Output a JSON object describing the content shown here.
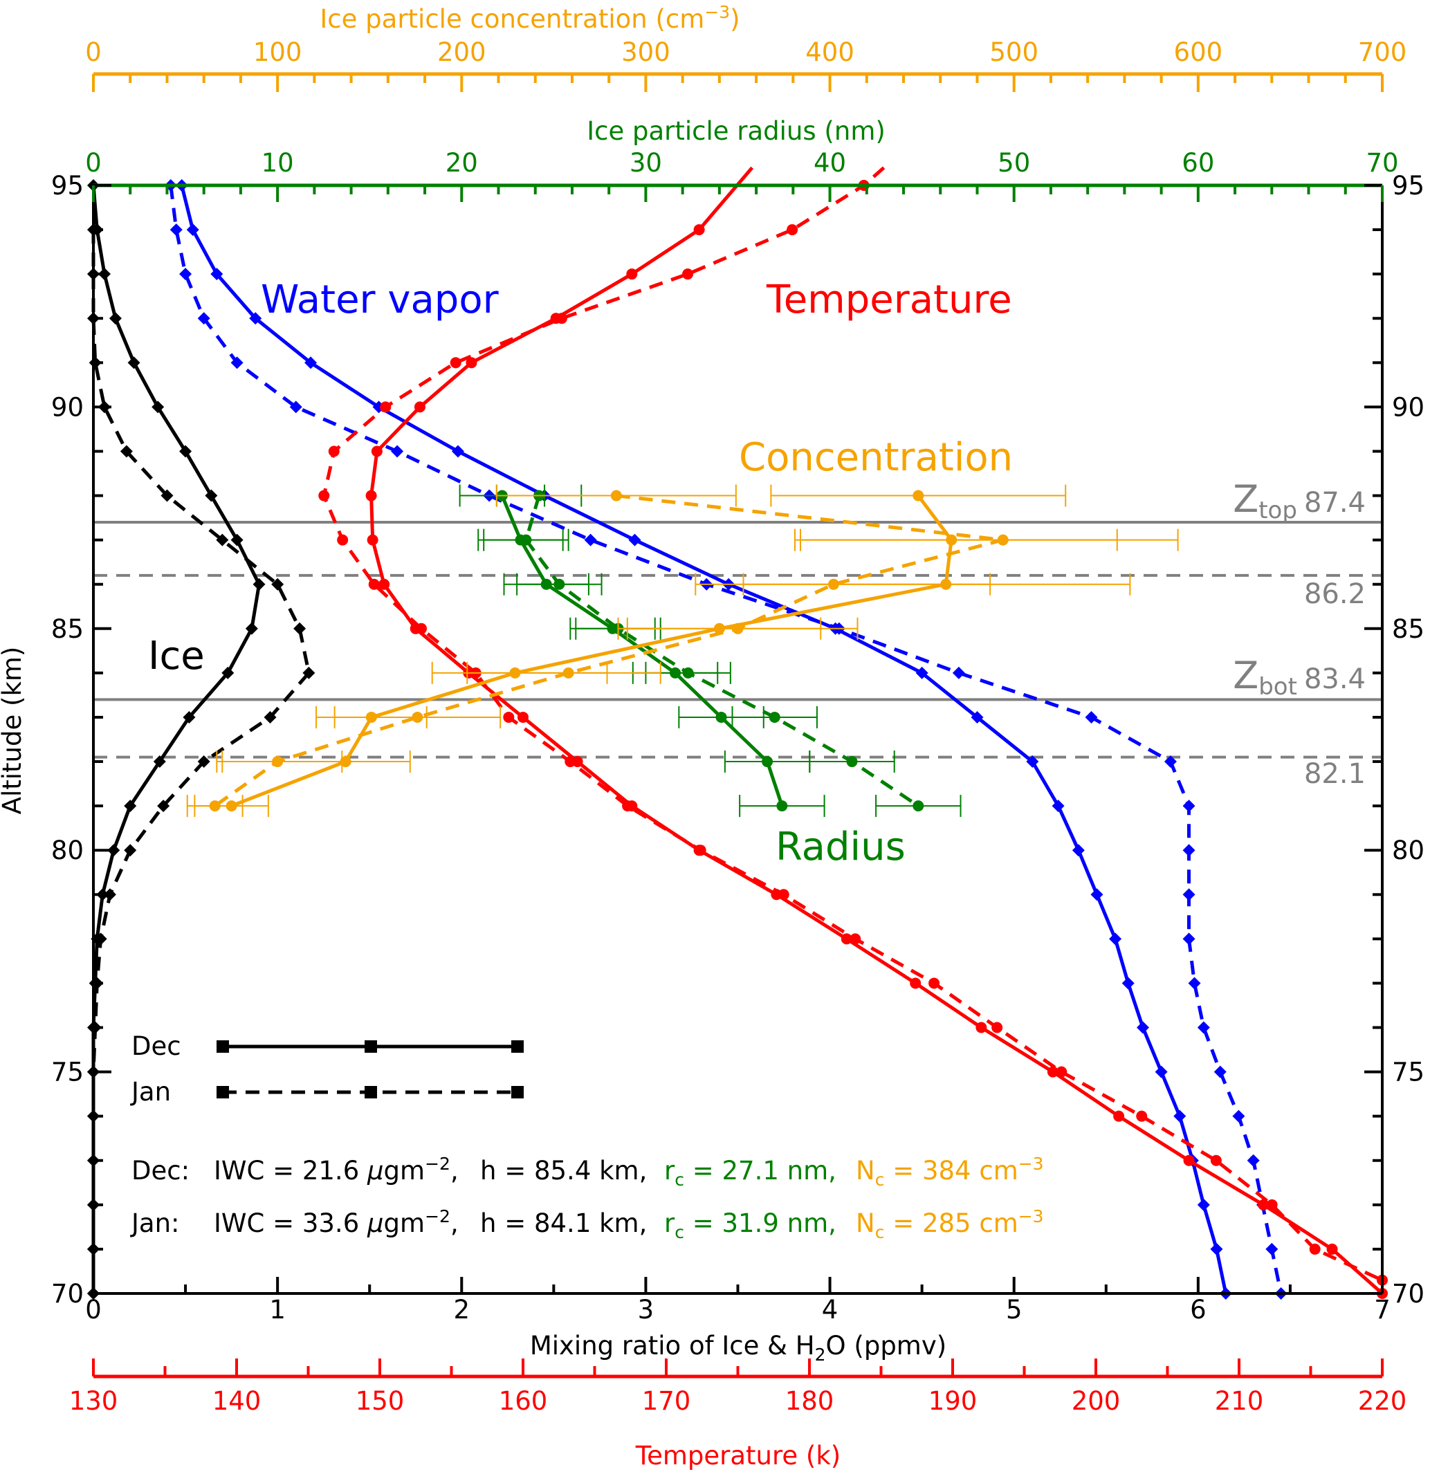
{
  "chart_data": {
    "type": "line",
    "ylabel": "Altitude (km)",
    "ylim": [
      70,
      95
    ],
    "yticks": [
      "70",
      "75",
      "80",
      "85",
      "90",
      "95"
    ],
    "axes": {
      "mixing": {
        "label_pre": "Mixing ratio of Ice & H",
        "label_sub": "2",
        "label_post": "O (ppmv)",
        "range": [
          0,
          7
        ],
        "ticks": [
          "0",
          "1",
          "2",
          "3",
          "4",
          "5",
          "6",
          "7"
        ],
        "color": "#000000"
      },
      "temperature": {
        "label": "Temperature (k)",
        "range": [
          130,
          220
        ],
        "ticks": [
          "130",
          "140",
          "150",
          "160",
          "170",
          "180",
          "190",
          "200",
          "210",
          "220"
        ],
        "color": "#ff0000"
      },
      "radius": {
        "label": "Ice particle radius (nm)",
        "range": [
          0,
          70
        ],
        "ticks": [
          "0",
          "10",
          "20",
          "30",
          "40",
          "50",
          "60",
          "70"
        ],
        "color": "#008000"
      },
      "concentration": {
        "label_pre": "Ice particle concentration (cm",
        "label_sup": "−3",
        "label_post": ")",
        "range": [
          0,
          700
        ],
        "ticks": [
          "0",
          "100",
          "200",
          "300",
          "400",
          "500",
          "600",
          "700"
        ],
        "color": "#f5a300"
      }
    },
    "series": [
      {
        "key": "ice_dec",
        "axis": "mixing",
        "month": "Dec",
        "dash": false,
        "marker": "diamond",
        "color": "#000000",
        "x": [
          0.0,
          0.02,
          0.06,
          0.12,
          0.22,
          0.35,
          0.5,
          0.64,
          0.78,
          0.9,
          0.86,
          0.73,
          0.52,
          0.36,
          0.2,
          0.11,
          0.05,
          0.02,
          0.01,
          0.0,
          0.0,
          0.0,
          0.0,
          0.0,
          0.0,
          0.0
        ],
        "y": [
          95,
          94,
          93,
          92,
          91,
          90,
          89,
          88,
          87,
          86,
          85,
          84,
          83,
          82,
          81,
          80,
          79,
          78,
          77,
          76,
          75,
          74,
          73,
          72,
          71,
          70
        ]
      },
      {
        "key": "ice_jan",
        "axis": "mixing",
        "month": "Jan",
        "dash": true,
        "marker": "diamond",
        "color": "#000000",
        "x": [
          0.0,
          0.0,
          0.0,
          0.01,
          0.06,
          0.18,
          0.4,
          0.7,
          1.0,
          1.12,
          1.17,
          0.96,
          0.6,
          0.38,
          0.2,
          0.09,
          0.04,
          0.02,
          0.01,
          0.0,
          0.0,
          0.0,
          0.0,
          0.0,
          0.0
        ],
        "y": [
          94,
          93,
          92,
          91,
          90,
          89,
          88,
          87,
          86,
          85,
          84,
          83,
          82,
          81,
          80,
          79,
          78,
          77,
          76,
          75,
          74,
          73,
          72,
          71,
          70
        ]
      },
      {
        "key": "wv_dec",
        "axis": "mixing",
        "month": "Dec",
        "dash": false,
        "marker": "diamond",
        "color": "#0000ff",
        "x": [
          0.48,
          0.54,
          0.67,
          0.88,
          1.18,
          1.55,
          1.98,
          2.45,
          2.94,
          3.45,
          4.03,
          4.5,
          4.8,
          5.1,
          5.24,
          5.35,
          5.45,
          5.55,
          5.62,
          5.7,
          5.8,
          5.9,
          5.97,
          6.03,
          6.1,
          6.15
        ],
        "y": [
          95,
          94,
          93,
          92,
          91,
          90,
          89,
          88,
          87,
          86,
          85,
          84,
          83,
          82,
          81,
          80,
          79,
          78,
          77,
          76,
          75,
          74,
          73,
          72,
          71,
          70
        ]
      },
      {
        "key": "wv_jan",
        "axis": "mixing",
        "month": "Jan",
        "dash": true,
        "marker": "diamond",
        "color": "#0000ff",
        "x": [
          0.42,
          0.45,
          0.5,
          0.6,
          0.78,
          1.1,
          1.65,
          2.15,
          2.7,
          3.33,
          4.05,
          4.7,
          5.42,
          5.85,
          5.95,
          5.95,
          5.95,
          5.95,
          5.98,
          6.03,
          6.12,
          6.22,
          6.3,
          6.35,
          6.4,
          6.45
        ],
        "y": [
          95,
          94,
          93,
          92,
          91,
          90,
          89,
          88,
          87,
          86,
          85,
          84,
          83,
          82,
          81,
          80,
          79,
          78,
          77,
          76,
          75,
          74,
          73,
          72,
          71,
          70
        ]
      },
      {
        "key": "t_dec",
        "axis": "temperature",
        "month": "Dec",
        "dash": false,
        "marker": "circle",
        "color": "#ff0000",
        "x": [
          176.0,
          172.3,
          167.6,
          162.3,
          156.4,
          152.8,
          149.8,
          149.4,
          149.5,
          150.3,
          152.5,
          156.2,
          160.0,
          163.8,
          167.6,
          172.3,
          177.7,
          182.6,
          187.4,
          192.0,
          197.0,
          201.6,
          206.5,
          211.7,
          216.5,
          220.0
        ],
        "y": [
          95.4,
          94,
          93,
          92,
          91,
          90,
          89,
          88,
          87,
          86,
          85,
          84,
          83,
          82,
          81,
          80,
          79,
          78,
          77,
          76,
          75,
          74,
          73,
          72,
          71,
          70
        ]
      },
      {
        "key": "t_jan",
        "axis": "temperature",
        "month": "Jan",
        "dash": true,
        "marker": "circle",
        "color": "#ff0000",
        "x": [
          185.2,
          183.8,
          178.8,
          171.5,
          162.7,
          155.3,
          150.4,
          146.8,
          146.1,
          147.4,
          149.6,
          152.9,
          156.7,
          159.0,
          163.3,
          167.3,
          172.4,
          178.2,
          183.2,
          188.7,
          193.1,
          197.6,
          203.2,
          208.4,
          212.3,
          215.3,
          220.0
        ],
        "y": [
          95.4,
          95,
          94,
          93,
          92,
          91,
          90,
          89,
          88,
          87,
          86,
          85,
          84,
          83,
          82,
          81,
          80,
          79,
          78,
          77,
          76,
          75,
          74,
          73,
          72,
          71,
          70.3
        ]
      },
      {
        "key": "r_dec",
        "axis": "radius",
        "month": "Dec",
        "dash": false,
        "marker": "circle",
        "color": "#008000",
        "err": 2.3,
        "x": [
          22.2,
          23.2,
          24.6,
          28.2,
          31.6,
          34.1,
          36.6,
          37.4
        ],
        "y": [
          88,
          87,
          86,
          85,
          84,
          83,
          82,
          81
        ]
      },
      {
        "key": "r_jan",
        "axis": "radius",
        "month": "Jan",
        "dash": true,
        "marker": "circle",
        "color": "#008000",
        "err": 2.3,
        "x": [
          24.2,
          23.5,
          25.3,
          28.5,
          32.3,
          37.0,
          41.2,
          44.8
        ],
        "y": [
          88,
          87,
          86,
          85,
          84,
          83,
          82,
          81
        ]
      },
      {
        "key": "c_dec",
        "axis": "concentration",
        "month": "Dec",
        "dash": false,
        "marker": "circle",
        "color": "#f5a300",
        "x": [
          448,
          466,
          463,
          340,
          229,
          151,
          137,
          75
        ],
        "errL": [
          80,
          85,
          110,
          55,
          45,
          30,
          70,
          20
        ],
        "errR": [
          80,
          90,
          100,
          55,
          50,
          30,
          35,
          20
        ],
        "y": [
          88,
          87,
          86,
          85,
          84,
          83,
          82,
          81
        ]
      },
      {
        "key": "c_jan",
        "axis": "concentration",
        "month": "Jan",
        "dash": true,
        "marker": "circle",
        "color": "#f5a300",
        "x": [
          284,
          494,
          402,
          350,
          258,
          176,
          100,
          66
        ],
        "errL": [
          65,
          110,
          75,
          60,
          55,
          45,
          30,
          15
        ],
        "errR": [
          65,
          95,
          85,
          65,
          50,
          45,
          35,
          15
        ],
        "y": [
          88,
          87,
          86,
          85,
          84,
          83,
          82,
          81
        ]
      }
    ],
    "reference_lines": [
      {
        "altitude": 87.4,
        "style": "solid",
        "label_main": "Z",
        "label_sub": "top",
        "label_value": "87.4"
      },
      {
        "altitude": 86.2,
        "style": "dashed",
        "label_value": "86.2"
      },
      {
        "altitude": 83.4,
        "style": "solid",
        "label_main": "Z",
        "label_sub": "bot",
        "label_value": "83.4"
      },
      {
        "altitude": 82.1,
        "style": "dashed",
        "label_value": "82.1"
      }
    ],
    "annotations": {
      "water_vapor": "Water vapor",
      "temperature": "Temperature",
      "concentration": "Concentration",
      "radius": "Radius",
      "ice": "Ice"
    },
    "legend": {
      "position": "bottom-left",
      "items": [
        {
          "label": "Dec",
          "dash": false
        },
        {
          "label": "Jan",
          "dash": true
        }
      ]
    },
    "stats": [
      {
        "month": "Dec:",
        "iwc_pre": "IWC = 21.6 ",
        "iwc_mu": "μ",
        "iwc_unit": "gm",
        "iwc_sup": "−2",
        "iwc_post": ",",
        "h": "h = 85.4 km,",
        "r_main": "r",
        "r_sub": "c",
        "r_post": " = 27.1 nm,",
        "n_main": "N",
        "n_sub": "c",
        "n_post": " = 384 cm",
        "n_sup": "−3"
      },
      {
        "month": "Jan:",
        "iwc_pre": "IWC = 33.6 ",
        "iwc_mu": "μ",
        "iwc_unit": "gm",
        "iwc_sup": "−2",
        "iwc_post": ",",
        "h": "h = 84.1 km,",
        "r_main": "r",
        "r_sub": "c",
        "r_post": " = 31.9 nm,",
        "n_main": "N",
        "n_sub": "c",
        "n_post": " = 285 cm",
        "n_sup": "−3"
      }
    ]
  }
}
